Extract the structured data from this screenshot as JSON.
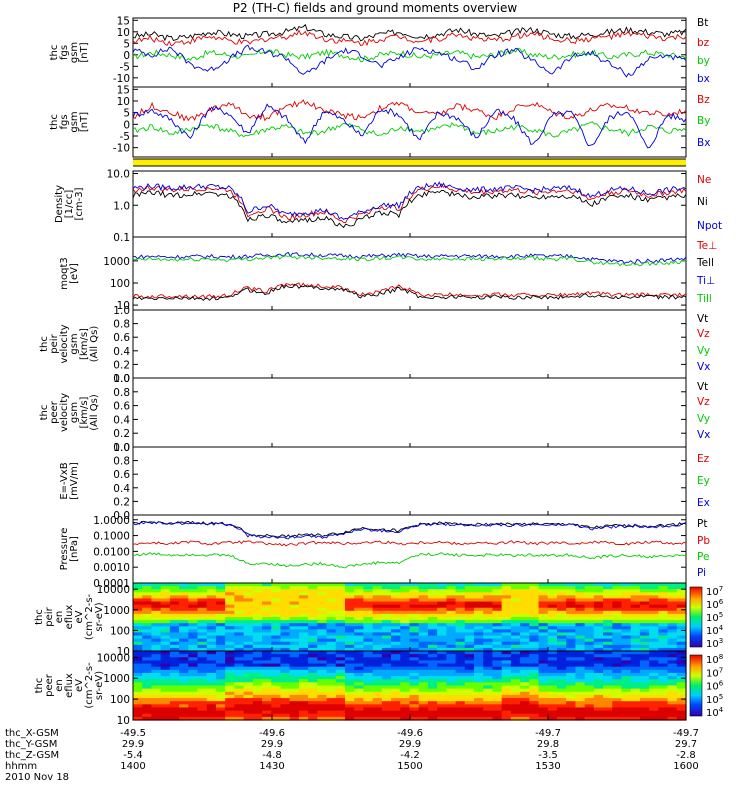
{
  "title": "P2 (TH-C) fields and ground moments overview",
  "chart_data": [
    {
      "type": "line",
      "ylabel": [
        "thc",
        "fgs",
        "gsm",
        "[nT]"
      ],
      "yticks": [
        "15",
        "10",
        "5",
        "0",
        "-5",
        "-10"
      ],
      "ylim": [
        -14,
        16
      ],
      "series": [
        {
          "name": "Bt",
          "color": "#000000",
          "values": [
            8,
            9,
            7,
            8,
            10,
            9,
            8,
            9,
            10,
            12,
            9,
            8,
            7,
            9,
            10,
            8,
            9,
            11,
            9,
            8,
            10,
            11,
            9,
            8,
            9,
            10,
            11,
            10,
            9,
            10
          ]
        },
        {
          "name": "bz",
          "color": "#dd0000",
          "values": [
            6,
            7,
            5,
            6,
            8,
            6,
            5,
            7,
            8,
            10,
            7,
            6,
            5,
            7,
            8,
            6,
            7,
            9,
            7,
            6,
            8,
            9,
            7,
            6,
            7,
            8,
            9,
            8,
            7,
            8
          ]
        },
        {
          "name": "by",
          "color": "#00cc00",
          "values": [
            -1,
            1,
            0,
            -2,
            1,
            0,
            -1,
            2,
            0,
            -1,
            1,
            0,
            -2,
            0,
            1,
            -1,
            0,
            1,
            -1,
            0,
            2,
            0,
            -1,
            0,
            1,
            -1,
            0,
            1,
            0,
            -1
          ]
        },
        {
          "name": "bx",
          "color": "#0000dd",
          "values": [
            2,
            0,
            3,
            -4,
            -7,
            -2,
            3,
            1,
            -1,
            -9,
            -3,
            2,
            0,
            -5,
            -1,
            3,
            1,
            -2,
            -6,
            0,
            2,
            -3,
            -8,
            -1,
            1,
            -4,
            -9,
            -2,
            0,
            -3
          ]
        }
      ]
    },
    {
      "type": "line",
      "ylabel": [
        "thc",
        "fgs",
        "gsm",
        "[nT]"
      ],
      "yticks": [
        "15",
        "10",
        "5",
        "0",
        "-5",
        "-10"
      ],
      "ylim": [
        -14,
        16
      ],
      "series": [
        {
          "name": "Bz",
          "color": "#dd0000",
          "values": [
            3,
            8,
            5,
            2,
            6,
            9,
            4,
            3,
            7,
            10,
            6,
            4,
            3,
            7,
            9,
            5,
            4,
            8,
            6,
            3,
            7,
            9,
            5,
            3,
            6,
            8,
            7,
            5,
            4,
            6
          ]
        },
        {
          "name": "By",
          "color": "#00cc00",
          "values": [
            -3,
            -1,
            -4,
            -2,
            0,
            -3,
            -5,
            -2,
            -1,
            -4,
            -3,
            0,
            -2,
            -5,
            -1,
            -3,
            -2,
            0,
            -4,
            -3,
            -1,
            -2,
            -5,
            -3,
            0,
            -2,
            -4,
            -1,
            -3,
            -2
          ]
        },
        {
          "name": "Bx",
          "color": "#0000dd",
          "values": [
            4,
            6,
            2,
            -6,
            7,
            5,
            -4,
            8,
            3,
            -8,
            6,
            2,
            -5,
            7,
            4,
            -7,
            5,
            3,
            -6,
            6,
            2,
            -9,
            4,
            5,
            -10,
            3,
            6,
            -11,
            4,
            2
          ]
        }
      ]
    },
    {
      "type": "line",
      "yscale": "log",
      "ylabel": [
        "Density",
        "[1/cc]",
        "[cm-3]"
      ],
      "yticks": [
        "10.0",
        "1.0",
        "0.1"
      ],
      "ylim": [
        0.1,
        12
      ],
      "series": [
        {
          "name": "Ne",
          "color": "#dd0000",
          "values": [
            3,
            3.5,
            3,
            3.2,
            3.5,
            3,
            0.5,
            0.8,
            0.4,
            0.5,
            0.6,
            0.3,
            0.5,
            0.9,
            0.8,
            3,
            4,
            3,
            2.5,
            2.8,
            3,
            2.5,
            2.8,
            3,
            1.5,
            2.5,
            2.8,
            2,
            2.5,
            3
          ]
        },
        {
          "name": "Ni",
          "color": "#000000",
          "values": [
            2,
            2.5,
            2,
            2.2,
            2.5,
            2,
            0.35,
            0.5,
            0.25,
            0.35,
            0.4,
            0.2,
            0.35,
            0.6,
            0.5,
            2,
            3,
            2,
            1.8,
            2,
            2,
            1.8,
            2,
            2,
            1,
            1.8,
            2,
            1.4,
            1.8,
            2
          ]
        },
        {
          "name": "Npot",
          "color": "#0000dd",
          "values": [
            3.5,
            4,
            3.5,
            3.8,
            4,
            3.5,
            0.6,
            1,
            0.5,
            0.6,
            0.7,
            0.35,
            0.6,
            1,
            1,
            3.5,
            4.5,
            3.5,
            3,
            3.3,
            3.5,
            3,
            3.3,
            3.5,
            1.8,
            3,
            3.3,
            2.3,
            3,
            3.5
          ]
        }
      ]
    },
    {
      "type": "line",
      "yscale": "log",
      "ylabel": [
        "moqt3",
        "[eV]"
      ],
      "yticks": [
        "1000",
        "100",
        "10"
      ],
      "ylim": [
        6,
        12000
      ],
      "series": [
        {
          "name": "Te⊥",
          "color": "#dd0000",
          "values": [
            25,
            24,
            26,
            25,
            24,
            26,
            60,
            40,
            90,
            80,
            70,
            60,
            30,
            40,
            70,
            30,
            28,
            30,
            28,
            30,
            28,
            30,
            28,
            30,
            35,
            30,
            28,
            30,
            28,
            30
          ]
        },
        {
          "name": "Tell",
          "color": "#000000",
          "values": [
            20,
            19,
            21,
            20,
            19,
            21,
            50,
            32,
            75,
            65,
            60,
            50,
            24,
            32,
            55,
            24,
            22,
            24,
            22,
            24,
            22,
            24,
            22,
            24,
            28,
            24,
            22,
            24,
            22,
            24
          ]
        },
        {
          "name": "Ti⊥",
          "color": "#0000dd",
          "values": [
            1500,
            1600,
            1500,
            1550,
            1600,
            1500,
            1600,
            1800,
            2000,
            1900,
            1800,
            1700,
            1600,
            1700,
            1900,
            1600,
            1600,
            1700,
            1600,
            1650,
            1600,
            1700,
            1600,
            1650,
            1200,
            1000,
            900,
            1000,
            1100,
            1300
          ]
        },
        {
          "name": "Till",
          "color": "#00cc00",
          "values": [
            1100,
            1200,
            1100,
            1150,
            1200,
            1100,
            1200,
            1400,
            1500,
            1450,
            1400,
            1300,
            1200,
            1300,
            1450,
            1200,
            1200,
            1300,
            1200,
            1250,
            1200,
            1300,
            1200,
            1250,
            900,
            750,
            700,
            750,
            800,
            1000
          ]
        }
      ]
    },
    {
      "type": "line",
      "ylabel": [
        "thc",
        "peir",
        "velocity",
        "gsm",
        "[km/s]",
        "(All Qs)"
      ],
      "yticks": [
        "1.0",
        "0.8",
        "0.6",
        "0.4",
        "0.2",
        "0.0"
      ],
      "ylim": [
        0,
        1
      ],
      "series": [
        {
          "name": "Vt",
          "color": "#000000",
          "values": []
        },
        {
          "name": "Vz",
          "color": "#dd0000",
          "values": []
        },
        {
          "name": "Vy",
          "color": "#00cc00",
          "values": []
        },
        {
          "name": "Vx",
          "color": "#0000dd",
          "values": []
        }
      ]
    },
    {
      "type": "line",
      "ylabel": [
        "thc",
        "peer",
        "velocity",
        "gsm",
        "[km/s]",
        "(All Qs)"
      ],
      "yticks": [
        "1.0",
        "0.8",
        "0.6",
        "0.4",
        "0.2",
        "0.0"
      ],
      "ylim": [
        0,
        1
      ],
      "series": [
        {
          "name": "Vt",
          "color": "#000000",
          "values": []
        },
        {
          "name": "Vz",
          "color": "#dd0000",
          "values": []
        },
        {
          "name": "Vy",
          "color": "#00cc00",
          "values": []
        },
        {
          "name": "Vx",
          "color": "#0000dd",
          "values": []
        }
      ]
    },
    {
      "type": "line",
      "ylabel": [
        "E=-VxB",
        "[mV/m]"
      ],
      "yticks": [
        "1.0",
        "0.8",
        "0.6",
        "0.4",
        "0.2",
        "0.0"
      ],
      "ylim": [
        0,
        1
      ],
      "series": [
        {
          "name": "Ez",
          "color": "#dd0000",
          "values": []
        },
        {
          "name": "Ey",
          "color": "#00cc00",
          "values": []
        },
        {
          "name": "Ex",
          "color": "#0000dd",
          "values": []
        }
      ]
    },
    {
      "type": "line",
      "yscale": "log",
      "ylabel": [
        "Pressure",
        "[nPa]"
      ],
      "yticks": [
        "1.0000",
        "0.1000",
        "0.0100",
        "0.0010",
        "0.0001"
      ],
      "ylim": [
        0.0001,
        2
      ],
      "series": [
        {
          "name": "Pt",
          "color": "#000000",
          "values": [
            0.6,
            0.7,
            0.6,
            0.65,
            0.6,
            0.55,
            0.12,
            0.1,
            0.09,
            0.12,
            0.1,
            0.15,
            0.3,
            0.25,
            0.2,
            0.5,
            0.6,
            0.55,
            0.5,
            0.55,
            0.5,
            0.55,
            0.5,
            0.55,
            0.3,
            0.4,
            0.45,
            0.4,
            0.45,
            0.6
          ]
        },
        {
          "name": "Pb",
          "color": "#dd0000",
          "values": [
            0.03,
            0.035,
            0.03,
            0.04,
            0.03,
            0.035,
            0.04,
            0.03,
            0.025,
            0.03,
            0.04,
            0.03,
            0.035,
            0.04,
            0.03,
            0.035,
            0.04,
            0.03,
            0.035,
            0.03,
            0.04,
            0.03,
            0.035,
            0.03,
            0.04,
            0.035,
            0.03,
            0.04,
            0.035,
            0.03
          ]
        },
        {
          "name": "Pe",
          "color": "#00cc00",
          "values": [
            0.006,
            0.007,
            0.006,
            0.0065,
            0.006,
            0.0055,
            0.0015,
            0.0018,
            0.0012,
            0.0015,
            0.0017,
            0.001,
            0.0015,
            0.002,
            0.0018,
            0.006,
            0.007,
            0.006,
            0.0055,
            0.006,
            0.0055,
            0.006,
            0.0055,
            0.006,
            0.0035,
            0.005,
            0.0055,
            0.0045,
            0.005,
            0.006
          ]
        },
        {
          "name": "Pi",
          "color": "#0000dd",
          "values": [
            0.55,
            0.65,
            0.55,
            0.6,
            0.55,
            0.5,
            0.1,
            0.08,
            0.07,
            0.1,
            0.08,
            0.12,
            0.25,
            0.2,
            0.17,
            0.45,
            0.55,
            0.5,
            0.45,
            0.5,
            0.45,
            0.5,
            0.45,
            0.5,
            0.25,
            0.35,
            0.4,
            0.35,
            0.4,
            0.55
          ]
        }
      ]
    },
    {
      "type": "heatmap",
      "yscale": "log",
      "ylabel": [
        "thc",
        "peir",
        "en",
        "eflux",
        "eV",
        "(cm^2-s-",
        "sr-eV)"
      ],
      "yticks": [
        "10000",
        "1000",
        "100",
        "10"
      ],
      "ylim": [
        10,
        20000
      ],
      "colorbar": {
        "ticks": [
          "10^7",
          "10^6",
          "10^5",
          "10^4",
          "10^3"
        ]
      }
    },
    {
      "type": "heatmap",
      "yscale": "log",
      "ylabel": [
        "thc",
        "peer",
        "en",
        "eflux",
        "eV",
        "(cm^2-s-",
        "sr-eV)"
      ],
      "yticks": [
        "10000",
        "1000",
        "100",
        "10"
      ],
      "ylim": [
        10,
        20000
      ],
      "colorbar": {
        "ticks": [
          "10^8",
          "10^7",
          "10^6",
          "10^5",
          "10^4"
        ]
      }
    }
  ],
  "x_axis": {
    "row_labels": [
      "thc_X-GSM",
      "thc_Y-GSM",
      "thc_Z-GSM",
      "hhmm",
      "2010 Nov 18"
    ],
    "columns": [
      {
        "values": [
          "-49.5",
          "29.9",
          "-5.4",
          "1400"
        ]
      },
      {
        "values": [
          "-49.6",
          "29.9",
          "-4.8",
          "1430"
        ]
      },
      {
        "values": [
          "-49.6",
          "29.9",
          "-4.2",
          "1500"
        ]
      },
      {
        "values": [
          "-49.7",
          "29.8",
          "-3.5",
          "1530"
        ]
      },
      {
        "values": [
          "-49.7",
          "29.7",
          "-2.8",
          "1600"
        ]
      }
    ]
  }
}
